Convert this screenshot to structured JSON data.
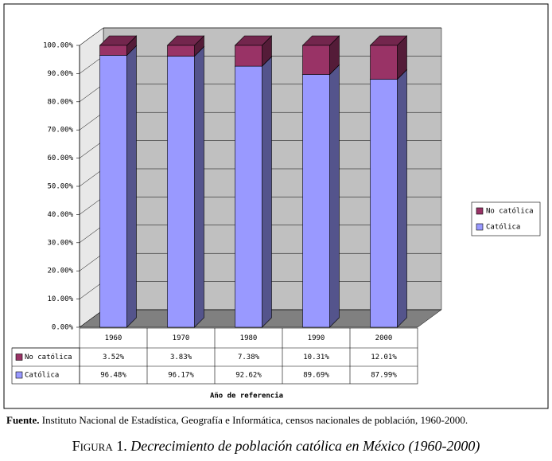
{
  "chart_data": {
    "type": "bar",
    "stacked": true,
    "x_label": "Año de referencia",
    "categories": [
      "1960",
      "1970",
      "1980",
      "1990",
      "2000"
    ],
    "series": [
      {
        "name": "Católica",
        "color": "#9999ff",
        "values": [
          96.48,
          96.17,
          92.62,
          89.69,
          87.99
        ],
        "value_labels": [
          "96.48%",
          "96.17%",
          "92.62%",
          "89.69%",
          "87.99%"
        ]
      },
      {
        "name": "No católica",
        "color": "#993366",
        "values": [
          3.52,
          3.83,
          7.38,
          10.31,
          12.01
        ],
        "value_labels": [
          "3.52%",
          "3.83%",
          "7.38%",
          "10.31%",
          "12.01%"
        ]
      }
    ],
    "ylim": [
      0,
      100
    ],
    "yticks": [
      {
        "value": 0,
        "label": "0.00%"
      },
      {
        "value": 10,
        "label": "10.00%"
      },
      {
        "value": 20,
        "label": "20.00%"
      },
      {
        "value": 30,
        "label": "30.00%"
      },
      {
        "value": 40,
        "label": "40.00%"
      },
      {
        "value": 50,
        "label": "50.00%"
      },
      {
        "value": 60,
        "label": "60.00%"
      },
      {
        "value": 70,
        "label": "70.00%"
      },
      {
        "value": 80,
        "label": "80.00%"
      },
      {
        "value": 90,
        "label": "90.00%"
      },
      {
        "value": 100,
        "label": "100.00%"
      }
    ],
    "grid": true,
    "legend": "right"
  },
  "source": {
    "label": "Fuente.",
    "text": "Instituto Nacional de Estadística, Geografía e Informática, censos nacionales de población, 1960-2000."
  },
  "caption": {
    "label": "Figura 1.",
    "text": "Decrecimiento de población católica en México (1960-2000)"
  }
}
